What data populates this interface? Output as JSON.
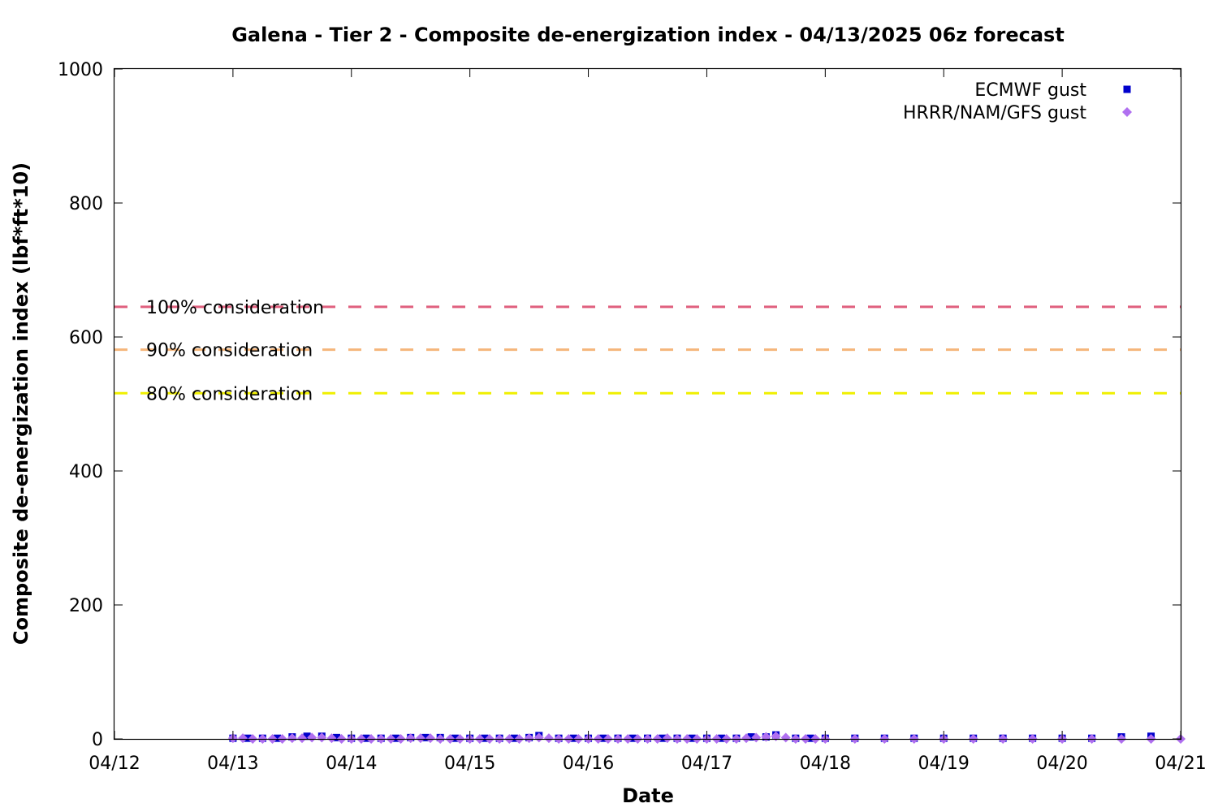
{
  "chart_data": {
    "type": "scatter",
    "title": "Galena - Tier 2 - Composite de-energization index - 04/13/2025 06z forecast",
    "xlabel": "Date",
    "ylabel": "Composite de-energization index (lbf*ft*10)",
    "xlim": [
      "2025-04-12",
      "2025-04-21"
    ],
    "ylim": [
      0,
      1000
    ],
    "x_tick_labels": [
      "04/12",
      "04/13",
      "04/14",
      "04/15",
      "04/16",
      "04/17",
      "04/18",
      "04/19",
      "04/20",
      "04/21"
    ],
    "y_tick_labels": [
      "0",
      "200",
      "400",
      "600",
      "800",
      "1000"
    ],
    "grid": false,
    "legend_position": "top-right",
    "thresholds": [
      {
        "label": "100% consideration",
        "value": 645,
        "color": "#e0607e"
      },
      {
        "label": "90% consideration",
        "value": 581,
        "color": "#f5b57a"
      },
      {
        "label": "80% consideration",
        "value": 516,
        "color": "#f0f000"
      }
    ],
    "series": [
      {
        "name": "ECMWF gust",
        "color": "#0000cc",
        "marker": "square",
        "points": [
          [
            "2025-04-13 00:00",
            1
          ],
          [
            "2025-04-13 03:00",
            1
          ],
          [
            "2025-04-13 06:00",
            1
          ],
          [
            "2025-04-13 09:00",
            1
          ],
          [
            "2025-04-13 12:00",
            3
          ],
          [
            "2025-04-13 15:00",
            4
          ],
          [
            "2025-04-13 18:00",
            4
          ],
          [
            "2025-04-13 21:00",
            2
          ],
          [
            "2025-04-14 00:00",
            1
          ],
          [
            "2025-04-14 03:00",
            1
          ],
          [
            "2025-04-14 06:00",
            1
          ],
          [
            "2025-04-14 09:00",
            1
          ],
          [
            "2025-04-14 12:00",
            2
          ],
          [
            "2025-04-14 15:00",
            2
          ],
          [
            "2025-04-14 18:00",
            2
          ],
          [
            "2025-04-14 21:00",
            1
          ],
          [
            "2025-04-15 00:00",
            1
          ],
          [
            "2025-04-15 03:00",
            1
          ],
          [
            "2025-04-15 06:00",
            1
          ],
          [
            "2025-04-15 09:00",
            1
          ],
          [
            "2025-04-15 12:00",
            2
          ],
          [
            "2025-04-15 14:00",
            5
          ],
          [
            "2025-04-15 18:00",
            1
          ],
          [
            "2025-04-15 21:00",
            1
          ],
          [
            "2025-04-16 00:00",
            1
          ],
          [
            "2025-04-16 03:00",
            1
          ],
          [
            "2025-04-16 06:00",
            1
          ],
          [
            "2025-04-16 09:00",
            1
          ],
          [
            "2025-04-16 12:00",
            1
          ],
          [
            "2025-04-16 15:00",
            1
          ],
          [
            "2025-04-16 18:00",
            1
          ],
          [
            "2025-04-16 21:00",
            1
          ],
          [
            "2025-04-17 00:00",
            1
          ],
          [
            "2025-04-17 03:00",
            1
          ],
          [
            "2025-04-17 06:00",
            1
          ],
          [
            "2025-04-17 09:00",
            3
          ],
          [
            "2025-04-17 12:00",
            3
          ],
          [
            "2025-04-17 14:00",
            6
          ],
          [
            "2025-04-17 18:00",
            1
          ],
          [
            "2025-04-17 21:00",
            1
          ],
          [
            "2025-04-18 00:00",
            1
          ],
          [
            "2025-04-18 06:00",
            1
          ],
          [
            "2025-04-18 12:00",
            1
          ],
          [
            "2025-04-18 18:00",
            1
          ],
          [
            "2025-04-19 00:00",
            1
          ],
          [
            "2025-04-19 06:00",
            1
          ],
          [
            "2025-04-19 12:00",
            1
          ],
          [
            "2025-04-19 18:00",
            1
          ],
          [
            "2025-04-20 00:00",
            1
          ],
          [
            "2025-04-20 06:00",
            1
          ],
          [
            "2025-04-20 12:00",
            3
          ],
          [
            "2025-04-20 18:00",
            4
          ]
        ]
      },
      {
        "name": "HRRR/NAM/GFS gust",
        "color": "#b070f0",
        "marker": "diamond",
        "points": [
          [
            "2025-04-13 00:00",
            1
          ],
          [
            "2025-04-13 02:00",
            1
          ],
          [
            "2025-04-13 04:00",
            0
          ],
          [
            "2025-04-13 06:00",
            0
          ],
          [
            "2025-04-13 08:00",
            0
          ],
          [
            "2025-04-13 10:00",
            0
          ],
          [
            "2025-04-13 12:00",
            1
          ],
          [
            "2025-04-13 14:00",
            1
          ],
          [
            "2025-04-13 16:00",
            2
          ],
          [
            "2025-04-13 18:00",
            2
          ],
          [
            "2025-04-13 20:00",
            1
          ],
          [
            "2025-04-13 22:00",
            0
          ],
          [
            "2025-04-14 00:00",
            0
          ],
          [
            "2025-04-14 02:00",
            0
          ],
          [
            "2025-04-14 04:00",
            0
          ],
          [
            "2025-04-14 06:00",
            0
          ],
          [
            "2025-04-14 08:00",
            0
          ],
          [
            "2025-04-14 10:00",
            0
          ],
          [
            "2025-04-14 12:00",
            1
          ],
          [
            "2025-04-14 14:00",
            1
          ],
          [
            "2025-04-14 16:00",
            1
          ],
          [
            "2025-04-14 18:00",
            0
          ],
          [
            "2025-04-14 20:00",
            0
          ],
          [
            "2025-04-14 22:00",
            0
          ],
          [
            "2025-04-15 00:00",
            0
          ],
          [
            "2025-04-15 02:00",
            0
          ],
          [
            "2025-04-15 04:00",
            0
          ],
          [
            "2025-04-15 06:00",
            0
          ],
          [
            "2025-04-15 08:00",
            0
          ],
          [
            "2025-04-15 10:00",
            0
          ],
          [
            "2025-04-15 12:00",
            1
          ],
          [
            "2025-04-15 14:00",
            2
          ],
          [
            "2025-04-15 16:00",
            1
          ],
          [
            "2025-04-15 18:00",
            0
          ],
          [
            "2025-04-15 20:00",
            0
          ],
          [
            "2025-04-15 22:00",
            0
          ],
          [
            "2025-04-16 00:00",
            0
          ],
          [
            "2025-04-16 02:00",
            0
          ],
          [
            "2025-04-16 04:00",
            0
          ],
          [
            "2025-04-16 06:00",
            0
          ],
          [
            "2025-04-16 08:00",
            0
          ],
          [
            "2025-04-16 10:00",
            0
          ],
          [
            "2025-04-16 12:00",
            0
          ],
          [
            "2025-04-16 14:00",
            0
          ],
          [
            "2025-04-16 16:00",
            1
          ],
          [
            "2025-04-16 18:00",
            0
          ],
          [
            "2025-04-16 20:00",
            0
          ],
          [
            "2025-04-16 22:00",
            0
          ],
          [
            "2025-04-17 00:00",
            0
          ],
          [
            "2025-04-17 02:00",
            0
          ],
          [
            "2025-04-17 04:00",
            0
          ],
          [
            "2025-04-17 06:00",
            0
          ],
          [
            "2025-04-17 08:00",
            1
          ],
          [
            "2025-04-17 10:00",
            2
          ],
          [
            "2025-04-17 12:00",
            3
          ],
          [
            "2025-04-17 14:00",
            4
          ],
          [
            "2025-04-17 16:00",
            2
          ],
          [
            "2025-04-17 18:00",
            0
          ],
          [
            "2025-04-17 20:00",
            0
          ],
          [
            "2025-04-17 22:00",
            0
          ],
          [
            "2025-04-18 00:00",
            0
          ],
          [
            "2025-04-18 06:00",
            0
          ],
          [
            "2025-04-18 12:00",
            0
          ],
          [
            "2025-04-18 18:00",
            0
          ],
          [
            "2025-04-19 00:00",
            0
          ],
          [
            "2025-04-19 06:00",
            0
          ],
          [
            "2025-04-19 12:00",
            0
          ],
          [
            "2025-04-19 18:00",
            0
          ],
          [
            "2025-04-20 00:00",
            0
          ],
          [
            "2025-04-20 06:00",
            0
          ],
          [
            "2025-04-20 12:00",
            0
          ],
          [
            "2025-04-20 18:00",
            0
          ],
          [
            "2025-04-21 00:00",
            0
          ]
        ]
      }
    ]
  }
}
